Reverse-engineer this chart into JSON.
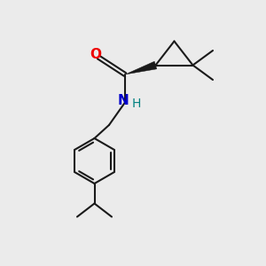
{
  "bg_color": "#ebebeb",
  "bond_color": "#1a1a1a",
  "O_color": "#ee0000",
  "N_color": "#0000cc",
  "H_color": "#008080",
  "line_width": 1.5,
  "figsize": [
    3.0,
    3.0
  ],
  "dpi": 100,
  "xlim": [
    0,
    10
  ],
  "ylim": [
    0,
    10
  ]
}
